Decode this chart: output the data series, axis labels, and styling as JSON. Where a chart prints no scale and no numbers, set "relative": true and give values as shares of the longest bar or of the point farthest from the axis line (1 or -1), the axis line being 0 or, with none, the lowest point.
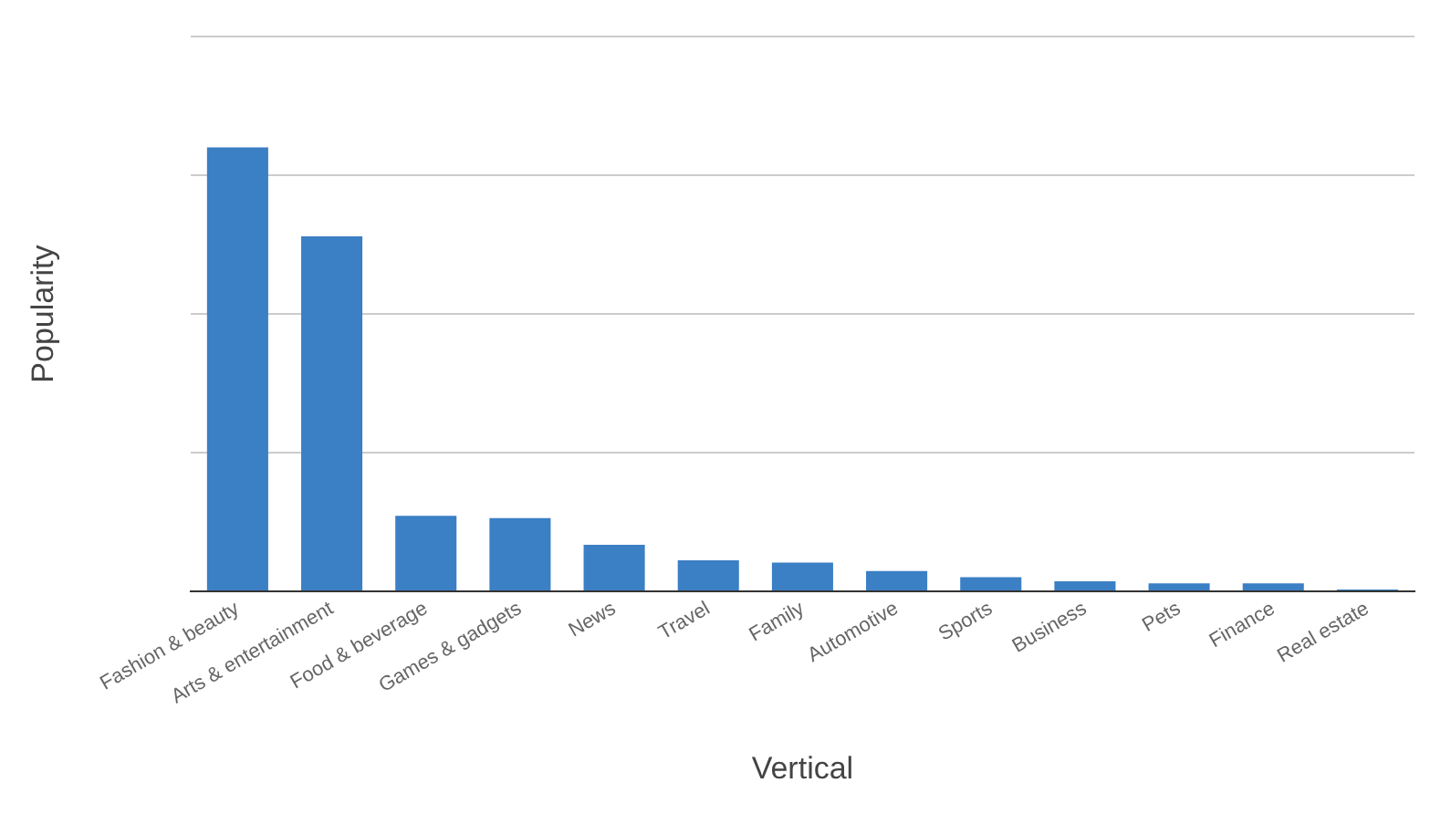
{
  "chart_data": {
    "type": "bar",
    "relative": true,
    "xlabel": "Vertical",
    "ylabel": "Popularity",
    "categories": [
      "Fashion & beauty",
      "Arts & entertainment",
      "Food & beverage",
      "Games & gadgets",
      "News",
      "Travel",
      "Family",
      "Automotive",
      "Sports",
      "Business",
      "Pets",
      "Finance",
      "Real estate"
    ],
    "values": [
      1,
      0.8,
      0.17,
      0.165,
      0.105,
      0.07,
      0.065,
      0.046,
      0.032,
      0.023,
      0.018,
      0.018,
      0.004
    ],
    "color": "#3b7fc4",
    "grid": "y",
    "legend": false
  }
}
